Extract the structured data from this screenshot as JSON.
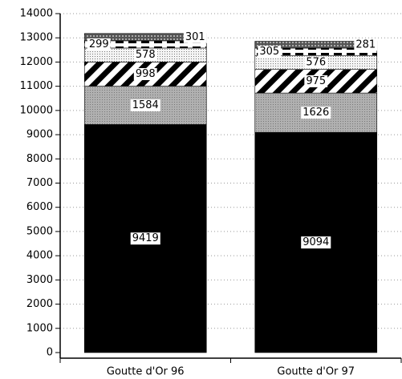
{
  "chart_data": {
    "type": "stacked_bar",
    "categories": [
      "Goutte d'Or 96",
      "Goutte d'Or 97"
    ],
    "series": [
      {
        "color": "#000000",
        "pattern": "solid",
        "values": [
          9419,
          9094
        ]
      },
      {
        "color": "#b0b0b0",
        "pattern": "dots",
        "values": [
          1584,
          1626
        ]
      },
      {
        "color": "#000000",
        "pattern": "hatch",
        "values": [
          998,
          975
        ]
      },
      {
        "color": "#f4f4f4",
        "pattern": "dots",
        "values": [
          578,
          576
        ]
      },
      {
        "color": "#000000",
        "pattern": "dash",
        "values": [
          299,
          305
        ]
      },
      {
        "color": "#555555",
        "pattern": "cross",
        "values": [
          301,
          281
        ]
      }
    ],
    "ylim": [
      0,
      14000
    ],
    "yticks": [
      0,
      1000,
      2000,
      3000,
      4000,
      5000,
      6000,
      7000,
      8000,
      9000,
      10000,
      11000,
      12000,
      13000,
      14000
    ],
    "grid": true
  }
}
